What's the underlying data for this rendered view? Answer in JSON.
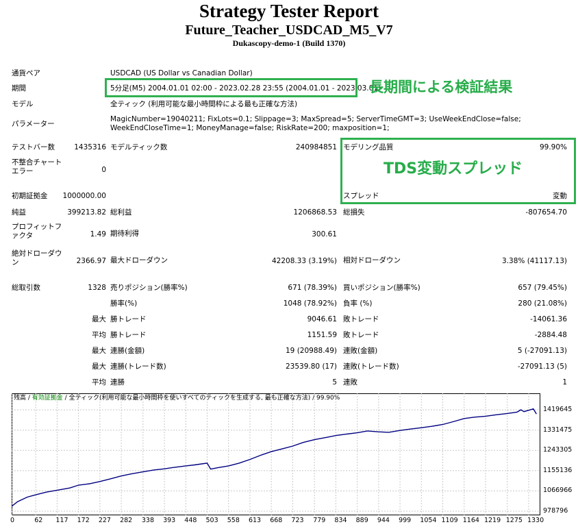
{
  "report": {
    "title": "Strategy Tester Report",
    "subtitle": "Future_Teacher_USDCAD_M5_V7",
    "server": "Dukascopy-demo-1 (Build 1370)"
  },
  "settings": {
    "symbol_label": "通貨ペア",
    "symbol_value": "USDCAD (US Dollar vs Canadian Dollar)",
    "period_label": "期間",
    "period_value": "5分足(M5) 2004.01.01 02:00 - 2023.02.28 23:55 (2004.01.01 - 2023.03.01)",
    "model_label": "モデル",
    "model_value": "全ティック (利用可能な最小時間枠による最も正確な方法)",
    "params_label": "パラメーター",
    "params_value": "MagicNumber=19040211; FixLots=0.1; Slippage=3; MaxSpread=5; ServerTimeGMT=3; UseWeekEndClose=false; WeekEndCloseTime=1; MoneyManage=false; RiskRate=200; maxposition=1;"
  },
  "annotations": {
    "period_note": "長期間による検証結果",
    "spread_note": "TDS変動スプレッド"
  },
  "stats": {
    "bars_label": "テストバー数",
    "bars_value": "1435316",
    "ticks_label": "モデルティック数",
    "ticks_value": "240984851",
    "quality_label": "モデリング品質",
    "quality_value": "99.90%",
    "mismatch_label": "不整合チャートエラー",
    "mismatch_value": "0",
    "deposit_label": "初期証拠金",
    "deposit_value": "1000000.00",
    "spread_label": "スプレッド",
    "spread_value": "変動",
    "net_label": "純益",
    "net_value": "399213.82",
    "gross_profit_label": "総利益",
    "gross_profit_value": "1206868.53",
    "gross_loss_label": "総損失",
    "gross_loss_value": "-807654.70",
    "pf_label": "プロフィットファクタ",
    "pf_value": "1.49",
    "expected_label": "期待利得",
    "expected_value": "300.61",
    "abs_dd_label": "絶対ドローダウン",
    "abs_dd_value": "2366.97",
    "max_dd_label": "最大ドローダウン",
    "max_dd_value": "42208.33 (3.19%)",
    "rel_dd_label": "相対ドローダウン",
    "rel_dd_value": "3.38% (41117.13)",
    "trades_label": "総取引数",
    "trades_value": "1328",
    "short_label": "売りポジション(勝率%)",
    "short_value": "671 (78.39%)",
    "long_label": "買いポジション(勝率%)",
    "long_value": "657 (79.45%)",
    "winrate_label": "勝率(%)",
    "winrate_value": "1048 (78.92%)",
    "lossrate_label": "負率 (%)",
    "lossrate_value": "280 (21.08%)",
    "max_label": "最大",
    "avg_label": "平均",
    "win_trade_label": "勝トレード",
    "max_win_value": "9046.61",
    "loss_trade_label": "敗トレード",
    "max_loss_value": "-14061.36",
    "avg_win_value": "1151.59",
    "avg_loss_value": "-2884.48",
    "cons_wins_money_label": "連勝(金額)",
    "cons_wins_money_value": "19 (20988.49)",
    "cons_losses_money_label": "連敗(金額)",
    "cons_losses_money_value": "5 (-27091.13)",
    "cons_profit_label": "連勝(トレード数)",
    "cons_profit_value": "23539.80 (17)",
    "cons_loss_label": "連敗(トレード数)",
    "cons_loss_value": "-27091.13 (5)",
    "avg_cons_wins_label": "連勝",
    "avg_cons_wins_value": "5",
    "avg_cons_losses_label": "連敗",
    "avg_cons_losses_value": "1"
  },
  "chart_legend": {
    "balance": "残高",
    "sep1": " / ",
    "equity": "有効証拠金",
    "sep2": " / ",
    "rest": "全ティック(利用可能な最小時間枠を使いすべてのティックを生成する, 最も正確な方法) / 99.90%"
  },
  "colors": {
    "line": "#000080",
    "accent": "#2fb050",
    "equity": "#008000"
  },
  "chart_data": {
    "type": "line",
    "title": "",
    "xlabel": "",
    "ylabel": "",
    "x_ticks": [
      0,
      62,
      117,
      172,
      227,
      282,
      338,
      393,
      448,
      503,
      558,
      613,
      668,
      723,
      779,
      834,
      889,
      944,
      999,
      1054,
      1109,
      1164,
      1219,
      1275,
      1330
    ],
    "y_ticks": [
      978796,
      1066966,
      1155136,
      1243305,
      1331475,
      1419645
    ],
    "xlim": [
      0,
      1360
    ],
    "ylim": [
      978796,
      1450000
    ],
    "grid": true,
    "series": [
      {
        "values_x": [
          0,
          15,
          40,
          62,
          90,
          117,
          150,
          172,
          200,
          227,
          255,
          282,
          310,
          338,
          365,
          393,
          420,
          448,
          470,
          495,
          503,
          512,
          530,
          558,
          585,
          613,
          640,
          668,
          700,
          723,
          750,
          779,
          810,
          834,
          860,
          889,
          915,
          944,
          970,
          999,
          1025,
          1054,
          1080,
          1109,
          1135,
          1164,
          1190,
          1219,
          1245,
          1275,
          1300,
          1310,
          1318,
          1330,
          1342,
          1350
        ],
        "values_y": [
          1000000,
          1020000,
          1040000,
          1050000,
          1062000,
          1070000,
          1080000,
          1092000,
          1098000,
          1108000,
          1120000,
          1132000,
          1142000,
          1150000,
          1158000,
          1163000,
          1170000,
          1176000,
          1180000,
          1186000,
          1188000,
          1162000,
          1168000,
          1176000,
          1188000,
          1204000,
          1222000,
          1238000,
          1252000,
          1262000,
          1278000,
          1290000,
          1300000,
          1308000,
          1314000,
          1320000,
          1328000,
          1324000,
          1322000,
          1330000,
          1336000,
          1342000,
          1348000,
          1356000,
          1368000,
          1382000,
          1388000,
          1392000,
          1398000,
          1404000,
          1410000,
          1420000,
          1412000,
          1418000,
          1424000,
          1402000
        ]
      }
    ]
  }
}
